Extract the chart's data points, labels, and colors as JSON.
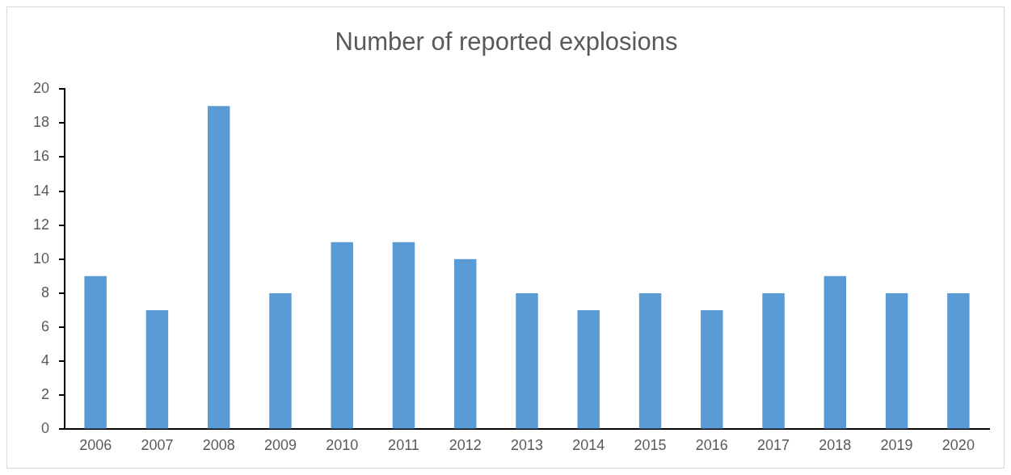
{
  "chart_data": {
    "type": "bar",
    "title": "Number of reported explosions",
    "categories": [
      "2006",
      "2007",
      "2008",
      "2009",
      "2010",
      "2011",
      "2012",
      "2013",
      "2014",
      "2015",
      "2016",
      "2017",
      "2018",
      "2019",
      "2020"
    ],
    "values": [
      9,
      7,
      19,
      8,
      11,
      11,
      10,
      8,
      7,
      8,
      7,
      8,
      9,
      8,
      8
    ],
    "color": "#5b9bd5",
    "ylim": [
      0,
      20
    ],
    "yticks": [
      0,
      2,
      4,
      6,
      8,
      10,
      12,
      14,
      16,
      18,
      20
    ],
    "grid": false,
    "legend": false
  }
}
